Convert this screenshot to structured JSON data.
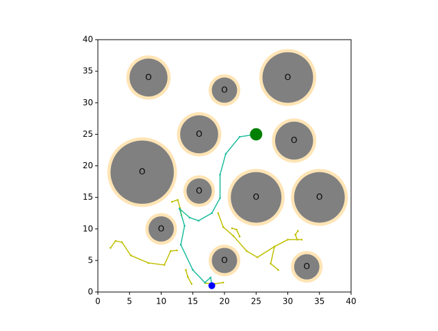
{
  "chart_data": {
    "type": "scatter",
    "xlim": [
      0,
      40
    ],
    "ylim": [
      0,
      40
    ],
    "xticks": [
      0,
      5,
      10,
      15,
      20,
      25,
      30,
      35,
      40
    ],
    "yticks": [
      0,
      5,
      10,
      15,
      20,
      25,
      30,
      35,
      40
    ],
    "obstacle_color": "#808080",
    "buffer_color": "#ffe4b5",
    "obstacles": [
      {
        "x": 8,
        "y": 34,
        "r": 3,
        "buffer_r": 3.5,
        "label": "O"
      },
      {
        "x": 20,
        "y": 32,
        "r": 2,
        "buffer_r": 2.5,
        "label": "O"
      },
      {
        "x": 30,
        "y": 34,
        "r": 4,
        "buffer_r": 4.5,
        "label": "O"
      },
      {
        "x": 16,
        "y": 25,
        "r": 3,
        "buffer_r": 3.5,
        "label": "O"
      },
      {
        "x": 31,
        "y": 24,
        "r": 3,
        "buffer_r": 3.5,
        "label": "O"
      },
      {
        "x": 7,
        "y": 19,
        "r": 5,
        "buffer_r": 5.5,
        "label": "O"
      },
      {
        "x": 16,
        "y": 16,
        "r": 2,
        "buffer_r": 2.5,
        "label": "O"
      },
      {
        "x": 25,
        "y": 15,
        "r": 4,
        "buffer_r": 4.5,
        "label": "O"
      },
      {
        "x": 35,
        "y": 15,
        "r": 4,
        "buffer_r": 4.5,
        "label": "O"
      },
      {
        "x": 10,
        "y": 10,
        "r": 2,
        "buffer_r": 2.5,
        "label": "O"
      },
      {
        "x": 20,
        "y": 5,
        "r": 2,
        "buffer_r": 2.5,
        "label": "O"
      },
      {
        "x": 33,
        "y": 4,
        "r": 2,
        "buffer_r": 2.5,
        "label": "O"
      }
    ],
    "paths": [
      {
        "color": "#bfbf00",
        "x": [
          2,
          2.8,
          3.8,
          5.2,
          8,
          10.5,
          11.5,
          12.5
        ],
        "y": [
          7,
          8.1,
          7.9,
          5.8,
          4.6,
          4.3,
          6.5,
          6.6
        ]
      },
      {
        "color": "#bfbf00",
        "x": [
          19,
          19.8,
          21.4,
          23.5,
          25.2,
          27.9,
          30,
          32.2
        ],
        "y": [
          12.5,
          10.3,
          8.9,
          6.5,
          5.5,
          7.2,
          8.3,
          8.3
        ]
      },
      {
        "color": "#bfbf00",
        "x": [
          31.5,
          31.2,
          31.6
        ],
        "y": [
          8.3,
          9.1,
          9.7
        ]
      },
      {
        "color": "#bfbf00",
        "x": [
          27.9,
          27.3,
          28.5
        ],
        "y": [
          7.2,
          4.5,
          3.5
        ]
      },
      {
        "color": "#bfbf00",
        "x": [
          11.7,
          12.6,
          13,
          13.2
        ],
        "y": [
          14.3,
          14.6,
          13.3,
          12.2
        ]
      },
      {
        "color": "#bfbf00",
        "x": [
          14.8,
          14.2,
          13.9
        ],
        "y": [
          1.3,
          2.4,
          3.5
        ]
      },
      {
        "color": "#bfbf00",
        "x": [
          21.2,
          21.9,
          22.4
        ],
        "y": [
          10.1,
          9.9,
          8.8
        ]
      },
      {
        "color": "#bfbf00",
        "x": [
          17,
          18.5,
          19.8
        ],
        "y": [
          1.4,
          1.3,
          1.5
        ]
      },
      {
        "color": "#1abc9c",
        "x": [
          18,
          17.8,
          16.9,
          15,
          13.1,
          13.7,
          12.9,
          14.5,
          15.9,
          18,
          19.3,
          19.3,
          20.2,
          22.4,
          25
        ],
        "y": [
          1.2,
          2.3,
          1.5,
          3.5,
          7.5,
          10.5,
          13.2,
          11.8,
          11.3,
          12.5,
          14.9,
          18.6,
          21.9,
          24.6,
          25
        ]
      }
    ],
    "start": {
      "x": 18,
      "y": 1,
      "color": "#0000ff"
    },
    "goal": {
      "x": 25,
      "y": 25,
      "color": "#008000"
    }
  }
}
